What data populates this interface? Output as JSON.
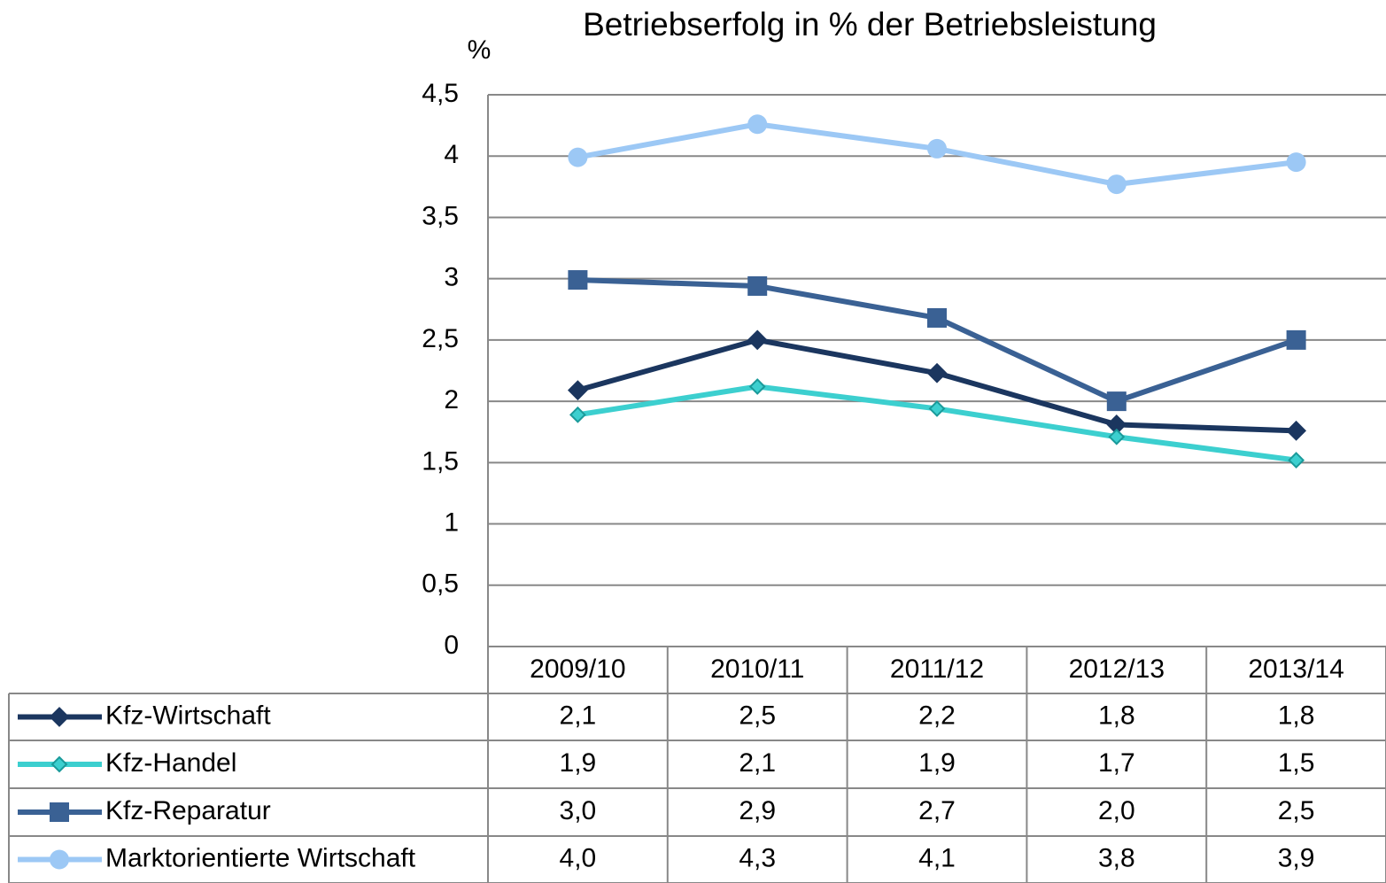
{
  "chart_data": {
    "type": "line",
    "title": "Betriebserfolg in % der Betriebsleistung",
    "y_label": "%",
    "categories": [
      "2009/10",
      "2010/11",
      "2011/12",
      "2012/13",
      "2013/14"
    ],
    "series": [
      {
        "name": "Kfz-Wirtschaft",
        "color": "#1b365f",
        "marker": "diamond",
        "values": [
          2.09,
          2.5,
          2.23,
          1.81,
          1.76
        ],
        "value_labels": [
          "2,1",
          "2,5",
          "2,2",
          "1,8",
          "1,8"
        ]
      },
      {
        "name": "Kfz-Handel",
        "color": "#3ccfcf",
        "marker": "small-diamond",
        "values": [
          1.89,
          2.12,
          1.94,
          1.71,
          1.52
        ],
        "value_labels": [
          "1,9",
          "2,1",
          "1,9",
          "1,7",
          "1,5"
        ]
      },
      {
        "name": "Kfz-Reparatur",
        "color": "#3a6194",
        "marker": "square",
        "values": [
          2.99,
          2.94,
          2.68,
          2.0,
          2.5
        ],
        "value_labels": [
          "3,0",
          "2,9",
          "2,7",
          "2,0",
          "2,5"
        ]
      },
      {
        "name": "Marktorientierte Wirtschaft",
        "color": "#9cc8f5",
        "marker": "circle",
        "values": [
          3.99,
          4.26,
          4.06,
          3.77,
          3.95
        ],
        "value_labels": [
          "4,0",
          "4,3",
          "4,1",
          "3,8",
          "3,9"
        ]
      }
    ],
    "ylim": [
      0,
      4.5
    ],
    "yticks": [
      0,
      {
        "value": 0.5,
        "label": "0,5"
      },
      1,
      {
        "value": 1.5,
        "label": "1,5"
      },
      2,
      {
        "value": 2.5,
        "label": "2,5"
      },
      3,
      {
        "value": 3.5,
        "label": "3,5"
      },
      4,
      {
        "value": 4.5,
        "label": "4,5"
      }
    ],
    "grid": true
  }
}
